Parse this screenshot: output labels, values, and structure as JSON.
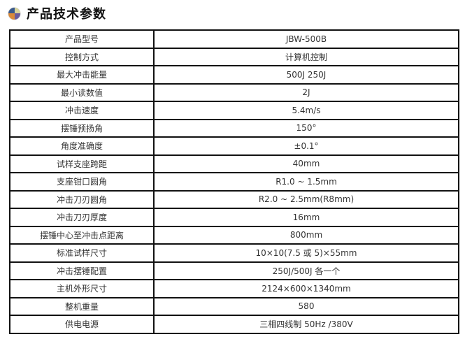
{
  "title": "产品技术参数",
  "icon": "quadrant-ball-icon",
  "rows": [
    {
      "label": "产品型号",
      "value": "JBW-500B"
    },
    {
      "label": "控制方式",
      "value": "计算机控制"
    },
    {
      "label": "最大冲击能量",
      "value": "500J 250J"
    },
    {
      "label": "最小读数值",
      "value": "2J"
    },
    {
      "label": "冲击速度",
      "value": "5.4m/s"
    },
    {
      "label": "摆锤预扬角",
      "value": "150°"
    },
    {
      "label": "角度准确度",
      "value": "±0.1°"
    },
    {
      "label": "试样支座跨距",
      "value": "40mm"
    },
    {
      "label": "支座钳口圆角",
      "value": "R1.0 ~ 1.5mm"
    },
    {
      "label": "冲击刀刃圆角",
      "value": "R2.0 ~ 2.5mm(R8mm)"
    },
    {
      "label": "冲击刀刃厚度",
      "value": "16mm"
    },
    {
      "label": "摆锤中心至冲击点距离",
      "value": "800mm"
    },
    {
      "label": "标准试样尺寸",
      "value": "10×10(7.5 或 5)×55mm"
    },
    {
      "label": "冲击摆锤配置",
      "value": "250J/500J 各一个"
    },
    {
      "label": "主机外形尺寸",
      "value": "2124×600×1340mm"
    },
    {
      "label": "整机重量",
      "value": "580"
    },
    {
      "label": "供电电源",
      "value": "三相四线制 50Hz /380V"
    }
  ]
}
